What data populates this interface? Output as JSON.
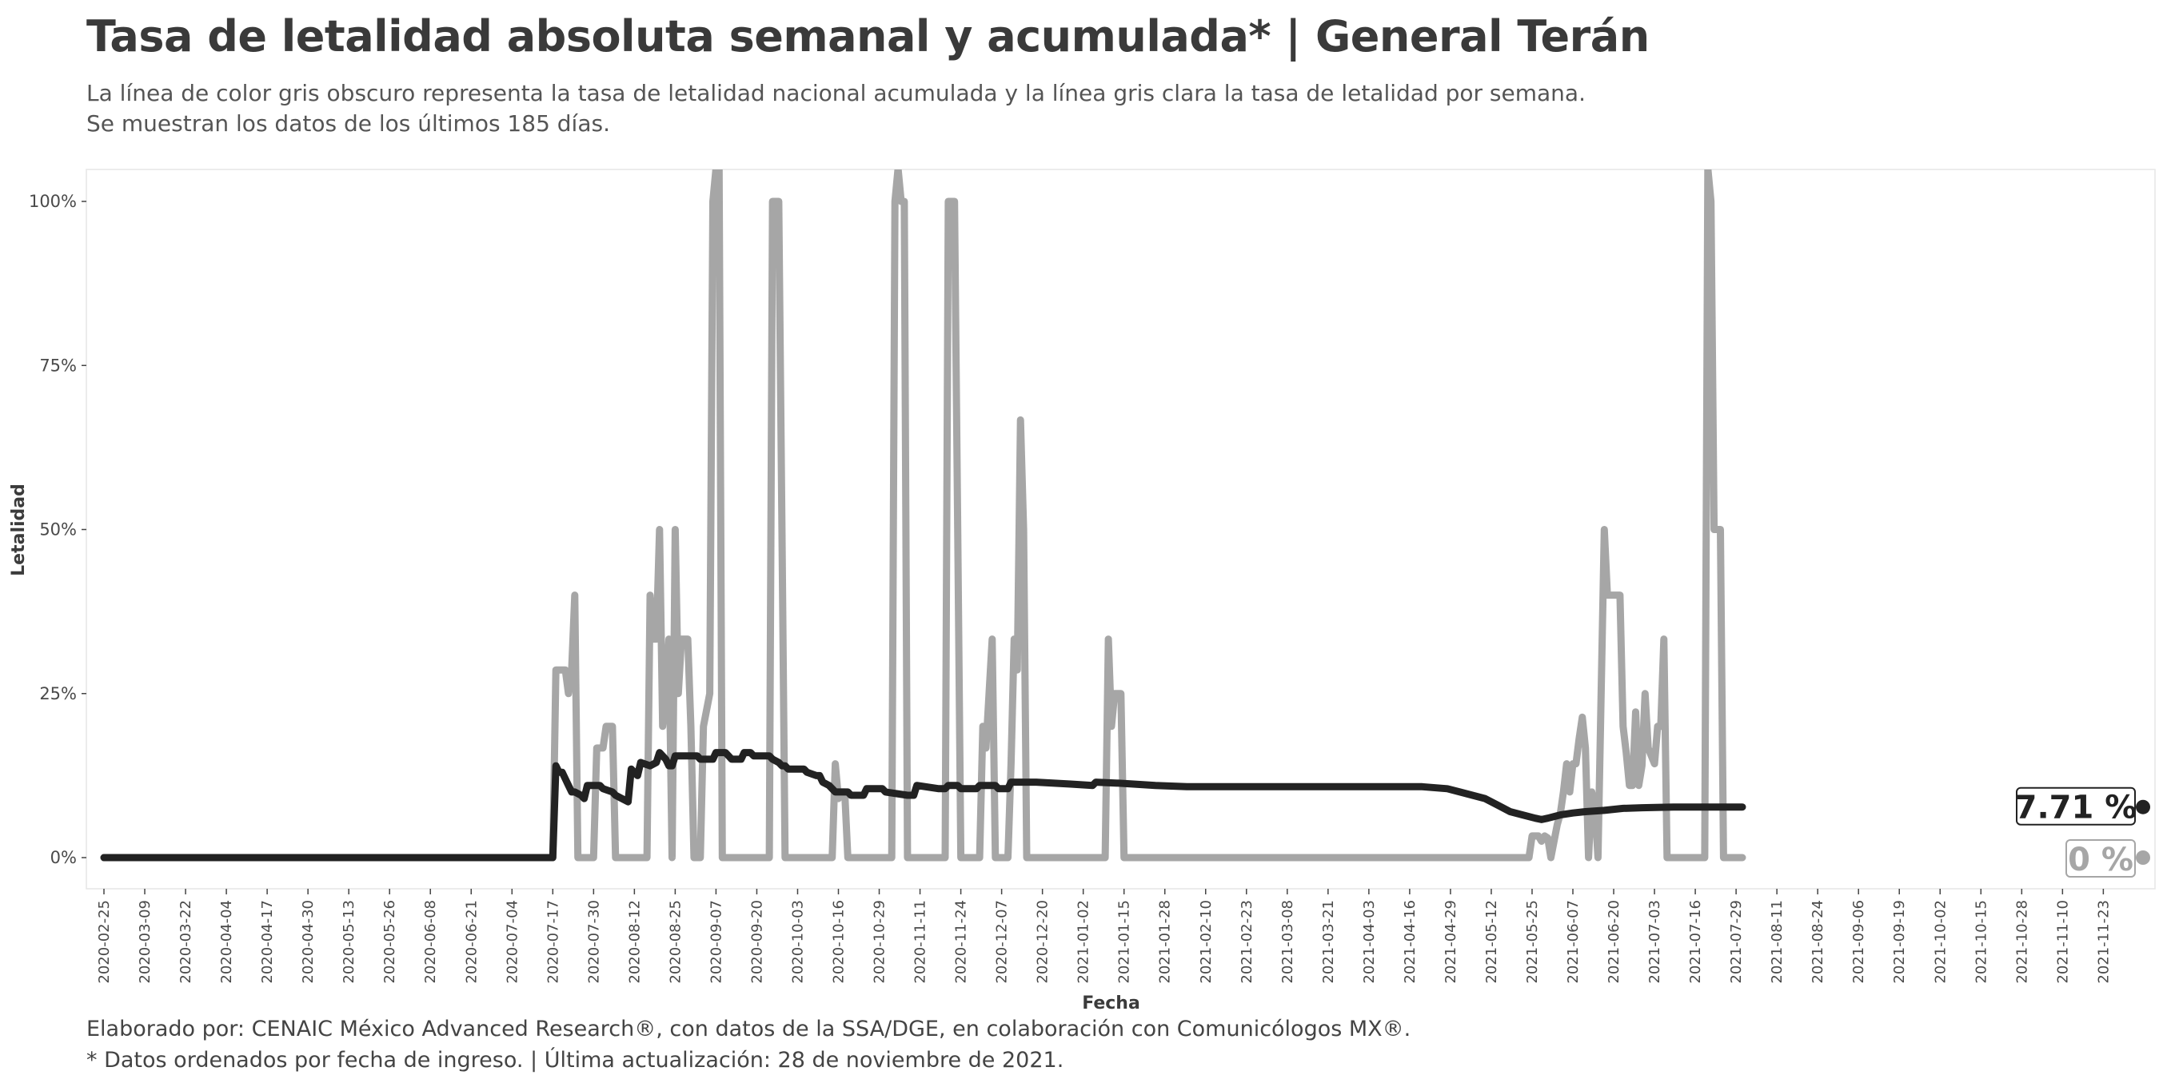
{
  "header": {
    "title": "Tasa de letalidad absoluta semanal y acumulada* | General Terán",
    "subtitle_line1": "La línea de color gris obscuro representa la tasa de letalidad nacional acumulada y la línea gris clara la tasa de letalidad por semana.",
    "subtitle_line2": "Se muestran los datos de los últimos 185 días."
  },
  "footer": {
    "caption_line1": "Elaborado por: CENAIC México Advanced Research®, con datos de la SSA/DGE, en colaboración con Comunicólogos MX®.",
    "caption_line2": "* Datos ordenados por fecha de ingreso. | Última actualización: 28 de noviembre de 2021."
  },
  "colors": {
    "weekly": "#a6a6a6",
    "cumulative": "#222222",
    "panel_border": "#e6e6e6"
  },
  "chart_data": {
    "type": "line",
    "title": "Tasa de letalidad absoluta semanal y acumulada* | General Terán",
    "xlabel": "Fecha",
    "ylabel": "Letalidad",
    "x_start": "2020-02-25",
    "x_end": "2021-11-28",
    "ylim": [
      -5,
      105
    ],
    "yticks": [
      0,
      25,
      50,
      75,
      100
    ],
    "ytick_labels": [
      "0%",
      "25%",
      "50%",
      "75%",
      "100%"
    ],
    "xtick_labels": [
      "2020-02-25",
      "2020-03-09",
      "2020-03-22",
      "2020-04-04",
      "2020-04-17",
      "2020-04-30",
      "2020-05-13",
      "2020-05-26",
      "2020-06-08",
      "2020-06-21",
      "2020-07-04",
      "2020-07-17",
      "2020-07-30",
      "2020-08-12",
      "2020-08-25",
      "2020-09-07",
      "2020-09-20",
      "2020-10-03",
      "2020-10-16",
      "2020-10-29",
      "2020-11-11",
      "2020-11-24",
      "2020-12-07",
      "2020-12-20",
      "2021-01-02",
      "2021-01-15",
      "2021-01-28",
      "2021-02-10",
      "2021-02-23",
      "2021-03-08",
      "2021-03-21",
      "2021-04-03",
      "2021-04-16",
      "2021-04-29",
      "2021-05-12",
      "2021-05-25",
      "2021-06-07",
      "2021-06-20",
      "2021-07-03",
      "2021-07-16",
      "2021-07-29",
      "2021-08-11",
      "2021-08-24",
      "2021-09-06",
      "2021-09-19",
      "2021-10-02",
      "2021-10-15",
      "2021-10-28",
      "2021-11-10",
      "2021-11-23"
    ],
    "series": [
      {
        "name": "Tasa de letalidad semanal",
        "end_label": "0 %",
        "points": [
          [
            0,
            0
          ],
          [
            143,
            0
          ],
          [
            144,
            28.6
          ],
          [
            147,
            28.6
          ],
          [
            148,
            25
          ],
          [
            149,
            28.6
          ],
          [
            150,
            40
          ],
          [
            151,
            0
          ],
          [
            156,
            0
          ],
          [
            157,
            16.7
          ],
          [
            159,
            16.7
          ],
          [
            160,
            20
          ],
          [
            162,
            20
          ],
          [
            163,
            0
          ],
          [
            173,
            0
          ],
          [
            174,
            40
          ],
          [
            175,
            33.3
          ],
          [
            176,
            33.3
          ],
          [
            177,
            50
          ],
          [
            178,
            20
          ],
          [
            179,
            25
          ],
          [
            180,
            33.3
          ],
          [
            181,
            0
          ],
          [
            182,
            50
          ],
          [
            183,
            25
          ],
          [
            184,
            33.3
          ],
          [
            186,
            33.3
          ],
          [
            187,
            20
          ],
          [
            188,
            0
          ],
          [
            190,
            0
          ],
          [
            191,
            20
          ],
          [
            193,
            25
          ],
          [
            194,
            100
          ],
          [
            195,
            105
          ],
          [
            196,
            105
          ],
          [
            197,
            0
          ],
          [
            212,
            0
          ],
          [
            213,
            100
          ],
          [
            215,
            100
          ],
          [
            216,
            50
          ],
          [
            217,
            0
          ],
          [
            232,
            0
          ],
          [
            233,
            14.3
          ],
          [
            234,
            9
          ],
          [
            235,
            10
          ],
          [
            236,
            10
          ],
          [
            237,
            0
          ],
          [
            251,
            0
          ],
          [
            252,
            100
          ],
          [
            253,
            105
          ],
          [
            254,
            100
          ],
          [
            255,
            100
          ],
          [
            256,
            0
          ],
          [
            268,
            0
          ],
          [
            269,
            100
          ],
          [
            271,
            100
          ],
          [
            272,
            50
          ],
          [
            273,
            0
          ],
          [
            279,
            0
          ],
          [
            280,
            20
          ],
          [
            281,
            16.7
          ],
          [
            282,
            25
          ],
          [
            283,
            33.3
          ],
          [
            284,
            0
          ],
          [
            288,
            0
          ],
          [
            289,
            14.3
          ],
          [
            290,
            33.3
          ],
          [
            291,
            28.6
          ],
          [
            292,
            66.7
          ],
          [
            293,
            50
          ],
          [
            294,
            0
          ],
          [
            319,
            0
          ],
          [
            320,
            33.3
          ],
          [
            321,
            20
          ],
          [
            322,
            25
          ],
          [
            324,
            25
          ],
          [
            325,
            0
          ],
          [
            454,
            0
          ],
          [
            455,
            3.3
          ],
          [
            457,
            3.3
          ],
          [
            458,
            2.5
          ],
          [
            459,
            3.3
          ],
          [
            460,
            3
          ],
          [
            461,
            0
          ],
          [
            463,
            5
          ],
          [
            464,
            6.7
          ],
          [
            465,
            10
          ],
          [
            466,
            14.3
          ],
          [
            467,
            10
          ],
          [
            468,
            14.3
          ],
          [
            469,
            14.3
          ],
          [
            470,
            18.2
          ],
          [
            471,
            21.4
          ],
          [
            472,
            16.7
          ],
          [
            473,
            0
          ],
          [
            474,
            10
          ],
          [
            475,
            8
          ],
          [
            476,
            0
          ],
          [
            478,
            50
          ],
          [
            479,
            40
          ],
          [
            483,
            40
          ],
          [
            484,
            20
          ],
          [
            485,
            16
          ],
          [
            486,
            11
          ],
          [
            487,
            11
          ],
          [
            488,
            22.2
          ],
          [
            489,
            11
          ],
          [
            490,
            14
          ],
          [
            491,
            25
          ],
          [
            492,
            16.7
          ],
          [
            494,
            14.3
          ],
          [
            495,
            20
          ],
          [
            496,
            20
          ],
          [
            497,
            33.3
          ],
          [
            498,
            0
          ],
          [
            510,
            0
          ],
          [
            511,
            105
          ],
          [
            512,
            100
          ],
          [
            513,
            50
          ],
          [
            515,
            50
          ],
          [
            516,
            0
          ],
          [
            522,
            0
          ]
        ]
      },
      {
        "name": "Tasa de letalidad acumulada",
        "end_label": "7.71 %",
        "points": [
          [
            0,
            0
          ],
          [
            142,
            0
          ],
          [
            143,
            0
          ],
          [
            144,
            14
          ],
          [
            145,
            13
          ],
          [
            146,
            13
          ],
          [
            147,
            12
          ],
          [
            148,
            11
          ],
          [
            149,
            10
          ],
          [
            150,
            10
          ],
          [
            152,
            9.5
          ],
          [
            153,
            9
          ],
          [
            154,
            11
          ],
          [
            158,
            11
          ],
          [
            159,
            10.5
          ],
          [
            162,
            10
          ],
          [
            163,
            9.5
          ],
          [
            165,
            9
          ],
          [
            167,
            8.5
          ],
          [
            168,
            13.5
          ],
          [
            170,
            12.5
          ],
          [
            171,
            14.5
          ],
          [
            174,
            14
          ],
          [
            176,
            14.5
          ],
          [
            177,
            16
          ],
          [
            179,
            15
          ],
          [
            180,
            14
          ],
          [
            181,
            14
          ],
          [
            182,
            15.5
          ],
          [
            189,
            15.5
          ],
          [
            190,
            15
          ],
          [
            194,
            15
          ],
          [
            195,
            16
          ],
          [
            198,
            16
          ],
          [
            199,
            15.5
          ],
          [
            200,
            15
          ],
          [
            202,
            15
          ],
          [
            203,
            15
          ],
          [
            204,
            16
          ],
          [
            206,
            16
          ],
          [
            207,
            15.5
          ],
          [
            212,
            15.5
          ],
          [
            213,
            15
          ],
          [
            215,
            14.5
          ],
          [
            216,
            14
          ],
          [
            217,
            14
          ],
          [
            218,
            13.5
          ],
          [
            223,
            13.5
          ],
          [
            224,
            13
          ],
          [
            227,
            12.5
          ],
          [
            228,
            12.5
          ],
          [
            229,
            11.5
          ],
          [
            231,
            11
          ],
          [
            232,
            10.5
          ],
          [
            233,
            10
          ],
          [
            236,
            10
          ],
          [
            237,
            10
          ],
          [
            238,
            9.5
          ],
          [
            242,
            9.5
          ],
          [
            243,
            10.5
          ],
          [
            248,
            10.5
          ],
          [
            249,
            10
          ],
          [
            256,
            9.5
          ],
          [
            258,
            9.5
          ],
          [
            259,
            11
          ],
          [
            266,
            10.5
          ],
          [
            268,
            10.5
          ],
          [
            269,
            11
          ],
          [
            272,
            11
          ],
          [
            273,
            10.5
          ],
          [
            278,
            10.5
          ],
          [
            279,
            11
          ],
          [
            284,
            11
          ],
          [
            285,
            10.5
          ],
          [
            288,
            10.5
          ],
          [
            289,
            11.5
          ],
          [
            296,
            11.5
          ],
          [
            297,
            11.5
          ],
          [
            308,
            11.2
          ],
          [
            315,
            11
          ],
          [
            316,
            11.5
          ],
          [
            325,
            11.3
          ],
          [
            335,
            11
          ],
          [
            345,
            10.8
          ],
          [
            365,
            10.8
          ],
          [
            395,
            10.8
          ],
          [
            420,
            10.8
          ],
          [
            428,
            10.5
          ],
          [
            432,
            10
          ],
          [
            436,
            9.5
          ],
          [
            440,
            9
          ],
          [
            444,
            8
          ],
          [
            448,
            7
          ],
          [
            452,
            6.5
          ],
          [
            456,
            6
          ],
          [
            458,
            5.8
          ],
          [
            460,
            6
          ],
          [
            464,
            6.5
          ],
          [
            468,
            6.8
          ],
          [
            472,
            7
          ],
          [
            478,
            7.2
          ],
          [
            484,
            7.5
          ],
          [
            490,
            7.6
          ],
          [
            500,
            7.7
          ],
          [
            522,
            7.71
          ]
        ]
      }
    ]
  }
}
